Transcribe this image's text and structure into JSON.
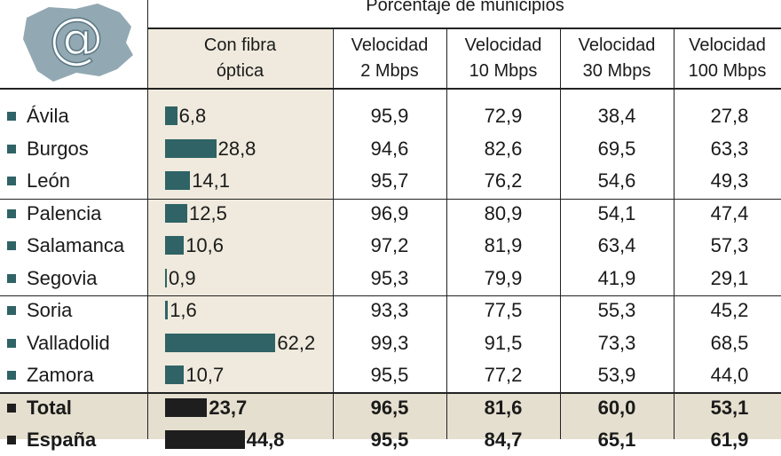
{
  "header": {
    "group_title": "Porcentaje de municipios"
  },
  "columns": [
    {
      "line1": "Con fibra",
      "line2": "óptica"
    },
    {
      "line1": "Velocidad",
      "line2": "2 Mbps"
    },
    {
      "line1": "Velocidad",
      "line2": "10 Mbps"
    },
    {
      "line1": "Velocidad",
      "line2": "30 Mbps"
    },
    {
      "line1": "Velocidad",
      "line2": "100 Mbps"
    }
  ],
  "colors": {
    "bar": "#2f6366",
    "bar_total": "#1e1e1e",
    "fibra_bg": "#efeadd",
    "total_bg": "#e5dfcf",
    "logo": "#7f9aa6"
  },
  "logo": {
    "icon": "at-sign-map-icon",
    "glyph": "@"
  },
  "chart_data": {
    "type": "table",
    "title": "Porcentaje de municipios",
    "columns": [
      "Con fibra óptica",
      "Velocidad 2 Mbps",
      "Velocidad 10 Mbps",
      "Velocidad 30 Mbps",
      "Velocidad 100 Mbps"
    ],
    "rows": [
      {
        "name": "Ávila",
        "values": [
          "6,8",
          "95,9",
          "72,9",
          "38,4",
          "27,8"
        ],
        "fibra": 6.8
      },
      {
        "name": "Burgos",
        "values": [
          "28,8",
          "94,6",
          "82,6",
          "69,5",
          "63,3"
        ],
        "fibra": 28.8
      },
      {
        "name": "León",
        "values": [
          "14,1",
          "95,7",
          "76,2",
          "54,6",
          "49,3"
        ],
        "fibra": 14.1
      },
      {
        "name": "Palencia",
        "values": [
          "12,5",
          "96,9",
          "80,9",
          "54,1",
          "47,4"
        ],
        "fibra": 12.5
      },
      {
        "name": "Salamanca",
        "values": [
          "10,6",
          "97,2",
          "81,9",
          "63,4",
          "57,3"
        ],
        "fibra": 10.6
      },
      {
        "name": "Segovia",
        "values": [
          "0,9",
          "95,3",
          "79,9",
          "41,9",
          "29,1"
        ],
        "fibra": 0.9
      },
      {
        "name": "Soria",
        "values": [
          "1,6",
          "93,3",
          "77,5",
          "55,3",
          "45,2"
        ],
        "fibra": 1.6
      },
      {
        "name": "Valladolid",
        "values": [
          "62,2",
          "99,3",
          "91,5",
          "73,3",
          "68,5"
        ],
        "fibra": 62.2
      },
      {
        "name": "Zamora",
        "values": [
          "10,7",
          "95,5",
          "77,2",
          "53,9",
          "44,0"
        ],
        "fibra": 10.7
      },
      {
        "name": "Total",
        "values": [
          "23,7",
          "96,5",
          "81,6",
          "60,0",
          "53,1"
        ],
        "fibra": 23.7,
        "bold": true
      },
      {
        "name": "España",
        "values": [
          "44,8",
          "95,5",
          "84,7",
          "65,1",
          "61,9"
        ],
        "fibra": 44.8,
        "bold": true
      }
    ]
  }
}
